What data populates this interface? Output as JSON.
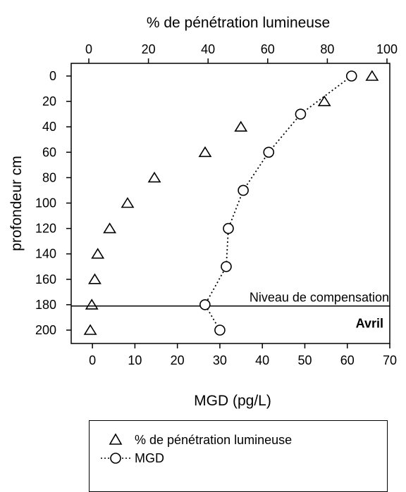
{
  "chart_data": {
    "type": "scatter",
    "top_xlabel": "% de pénétration lumineuse",
    "xlabel": "MGD (pg/L)",
    "ylabel": "profondeur cm",
    "xlim_bottom": [
      -5,
      70
    ],
    "xticks_bottom": [
      0,
      10,
      20,
      30,
      40,
      50,
      60,
      70
    ],
    "xlim_top": [
      0,
      100
    ],
    "xticks_top": [
      0,
      20,
      40,
      60,
      80,
      100
    ],
    "ylim": [
      0,
      200
    ],
    "y_inverted": true,
    "yticks": [
      0,
      20,
      40,
      60,
      80,
      100,
      120,
      140,
      160,
      180,
      200
    ],
    "series": [
      {
        "name": "% de pénétration lumineuse",
        "marker": "triangle",
        "axis": "top",
        "x": [
          95,
          79,
          51,
          39,
          22,
          13,
          7,
          3,
          2,
          1,
          0.5
        ],
        "y": [
          0,
          20,
          40,
          60,
          80,
          100,
          120,
          140,
          160,
          180,
          200
        ]
      },
      {
        "name": "MGD",
        "marker": "circle",
        "line": "dotted",
        "axis": "bottom",
        "x": [
          61,
          49,
          41.5,
          35.5,
          32,
          31.5,
          26.5,
          30
        ],
        "y": [
          0,
          30,
          60,
          90,
          120,
          150,
          180,
          200
        ]
      }
    ],
    "hline": {
      "y": 181,
      "label": "Niveau de compensation"
    },
    "annotation": "Avril",
    "legend_position": "bottom"
  }
}
